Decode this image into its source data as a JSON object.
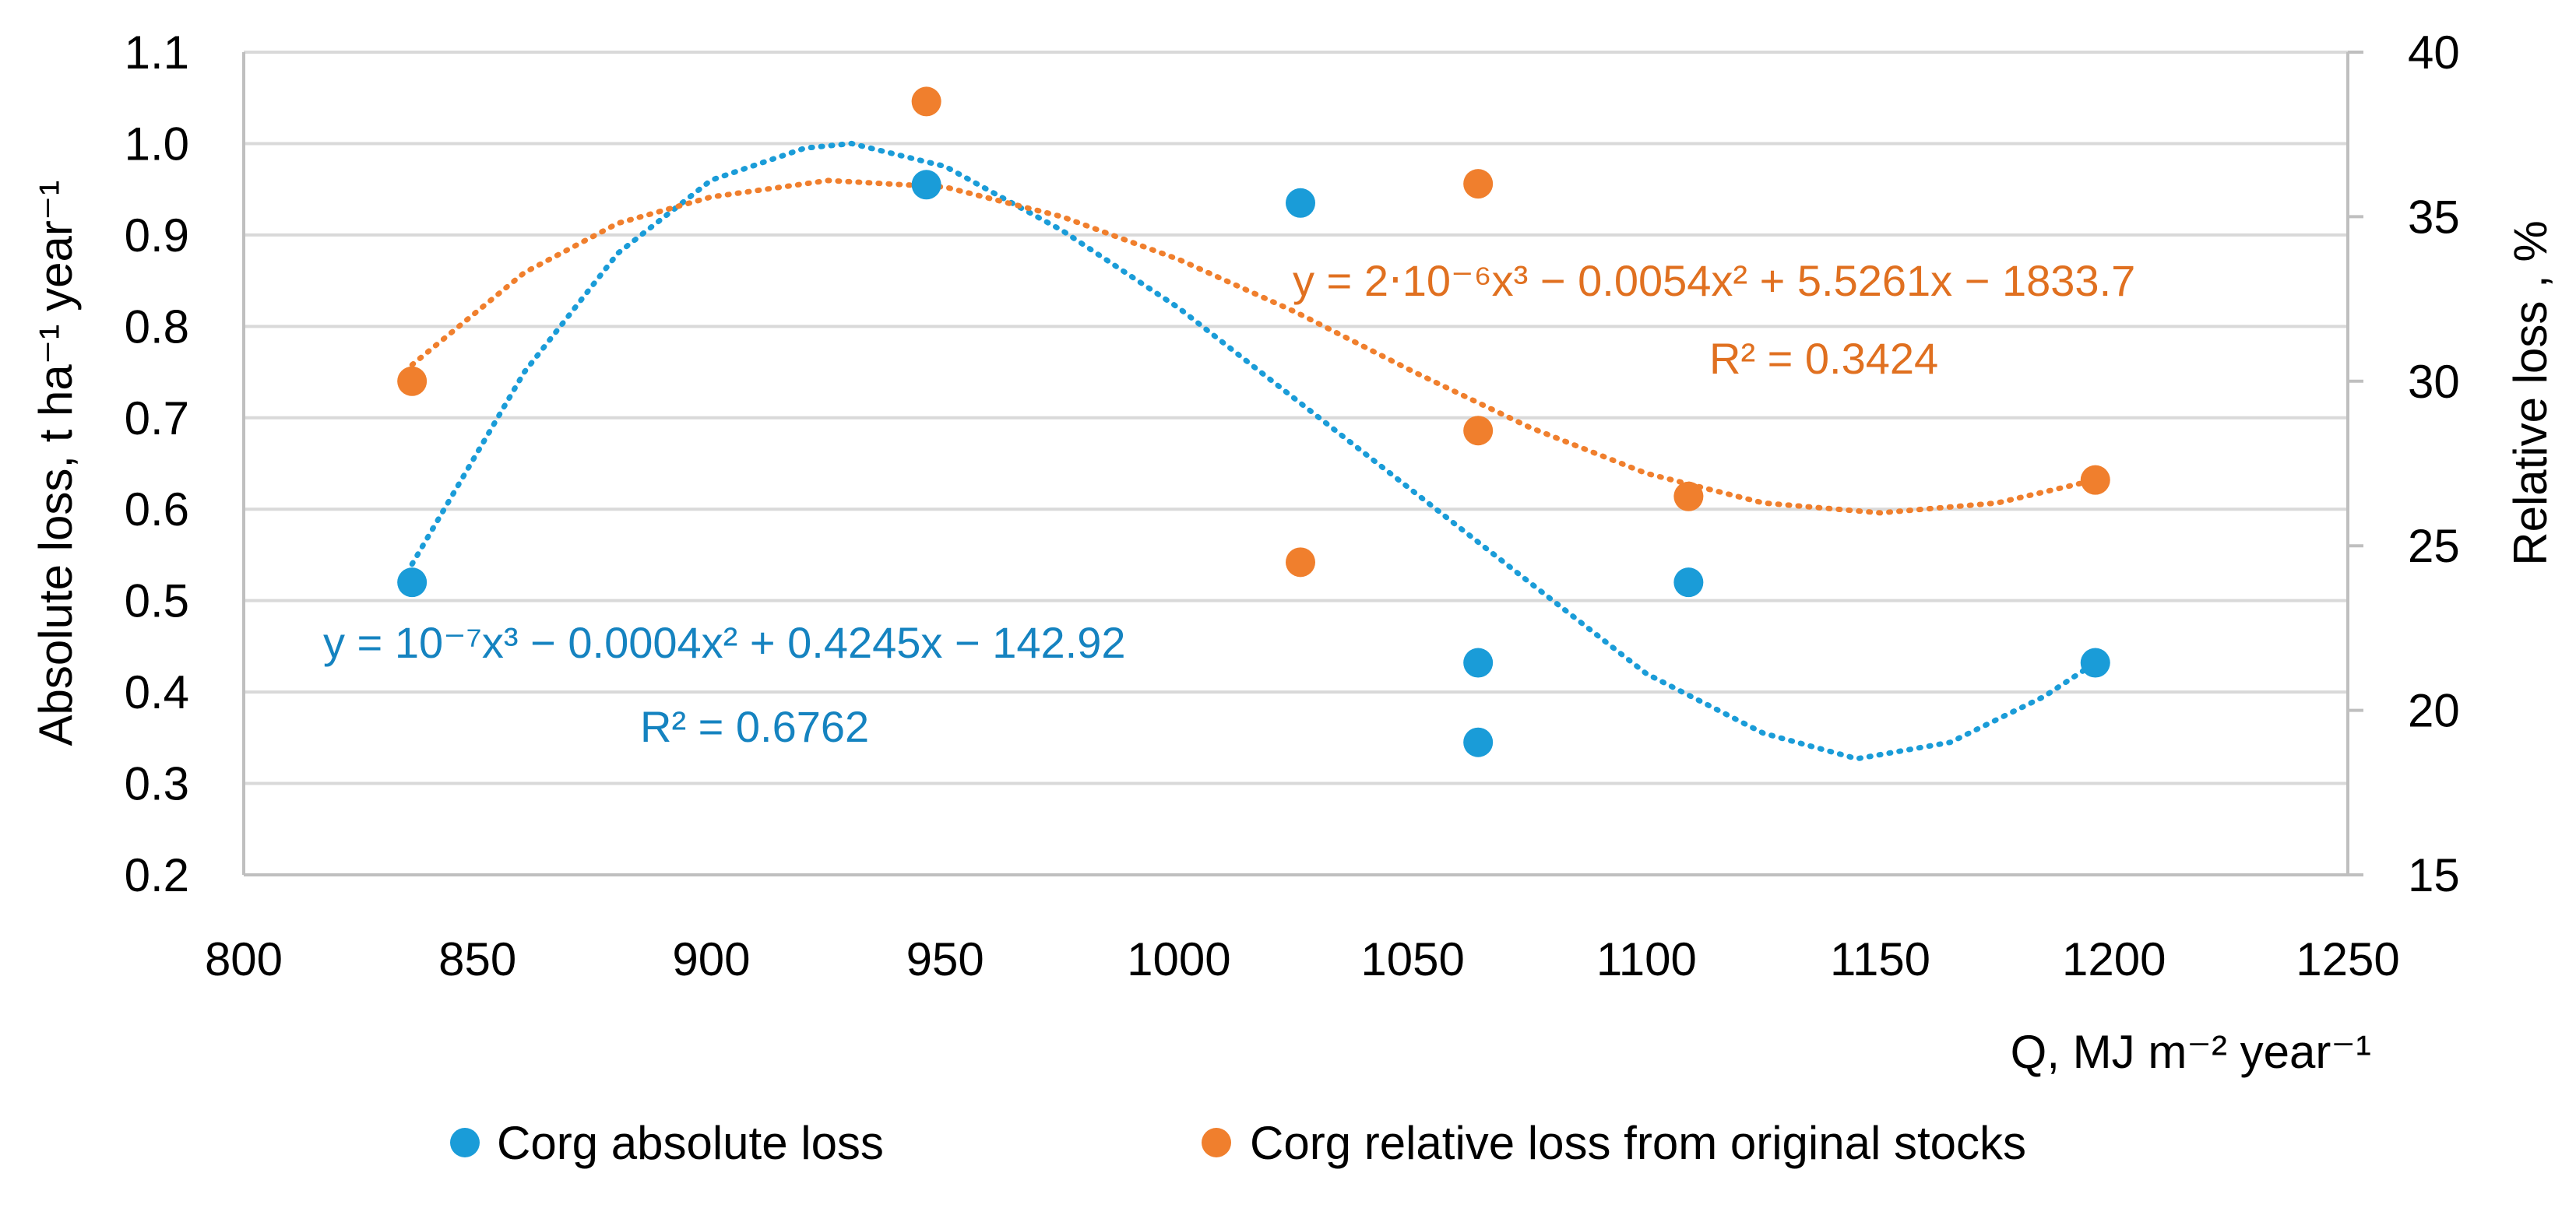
{
  "chart_data": {
    "type": "scatter",
    "title": "",
    "xlabel": "Q, MJ m⁻² year⁻¹",
    "ylabel": "Absolute loss, t ha⁻¹ year⁻¹",
    "y2label": "Relative loss , %",
    "xlim": [
      800,
      1250
    ],
    "ylim": [
      0.2,
      1.1
    ],
    "y2lim": [
      15,
      40
    ],
    "x_ticks": [
      800,
      850,
      900,
      950,
      1000,
      1050,
      1100,
      1150,
      1200,
      1250
    ],
    "y_ticks": [
      0.2,
      0.3,
      0.4,
      0.5,
      0.6,
      0.7,
      0.8,
      0.9,
      1.0,
      1.1
    ],
    "y_tick_labels": [
      "0.2",
      "0.3",
      "0.4",
      "0.5",
      "0.6",
      "0.7",
      "0.8",
      "0.9",
      "1.0",
      "1.1"
    ],
    "y2_ticks": [
      15,
      20,
      25,
      30,
      35,
      40
    ],
    "grid": true,
    "legend_position": "bottom",
    "colors": {
      "absolute": "#1a9cd8",
      "relative": "#f07f2d",
      "absolute_eq": "#1583c0",
      "relative_eq": "#e07020"
    },
    "series": [
      {
        "name": "Corg absolute loss",
        "axis": "left",
        "points": [
          {
            "x": 836,
            "y": 0.52
          },
          {
            "x": 946,
            "y": 0.955
          },
          {
            "x": 1026,
            "y": 0.935
          },
          {
            "x": 1064,
            "y": 0.432
          },
          {
            "x": 1064,
            "y": 0.345
          },
          {
            "x": 1109,
            "y": 0.52
          },
          {
            "x": 1196,
            "y": 0.432
          }
        ],
        "trendline": {
          "type": "poly3",
          "x_range": [
            836,
            1196
          ],
          "curve": [
            {
              "x": 836,
              "y": 0.54
            },
            {
              "x": 860,
              "y": 0.75
            },
            {
              "x": 880,
              "y": 0.88
            },
            {
              "x": 900,
              "y": 0.96
            },
            {
              "x": 920,
              "y": 0.995
            },
            {
              "x": 930,
              "y": 1.0
            },
            {
              "x": 950,
              "y": 0.975
            },
            {
              "x": 975,
              "y": 0.905
            },
            {
              "x": 1000,
              "y": 0.82
            },
            {
              "x": 1025,
              "y": 0.72
            },
            {
              "x": 1050,
              "y": 0.62
            },
            {
              "x": 1075,
              "y": 0.52
            },
            {
              "x": 1100,
              "y": 0.42
            },
            {
              "x": 1125,
              "y": 0.355
            },
            {
              "x": 1145,
              "y": 0.327
            },
            {
              "x": 1165,
              "y": 0.345
            },
            {
              "x": 1185,
              "y": 0.395
            },
            {
              "x": 1196,
              "y": 0.432
            }
          ]
        },
        "equation": "y = 10⁻⁷x³ − 0.0004x² + 0.4245x − 142.92",
        "r2": "R² = 0.6762"
      },
      {
        "name": "Corg relative loss from original stocks",
        "axis": "right",
        "points": [
          {
            "x": 836,
            "y": 30.0
          },
          {
            "x": 946,
            "y": 38.5
          },
          {
            "x": 1026,
            "y": 24.5
          },
          {
            "x": 1064,
            "y": 36.0
          },
          {
            "x": 1064,
            "y": 28.5
          },
          {
            "x": 1109,
            "y": 26.5
          },
          {
            "x": 1196,
            "y": 27.0
          }
        ],
        "trendline": {
          "type": "poly3",
          "x_range": [
            836,
            1196
          ],
          "curve": [
            {
              "x": 836,
              "y": 30.5
            },
            {
              "x": 860,
              "y": 33.3
            },
            {
              "x": 880,
              "y": 34.8
            },
            {
              "x": 900,
              "y": 35.6
            },
            {
              "x": 925,
              "y": 36.1
            },
            {
              "x": 950,
              "y": 35.9
            },
            {
              "x": 975,
              "y": 35.0
            },
            {
              "x": 1000,
              "y": 33.7
            },
            {
              "x": 1025,
              "y": 32.1
            },
            {
              "x": 1050,
              "y": 30.3
            },
            {
              "x": 1075,
              "y": 28.6
            },
            {
              "x": 1100,
              "y": 27.2
            },
            {
              "x": 1125,
              "y": 26.3
            },
            {
              "x": 1150,
              "y": 26.0
            },
            {
              "x": 1175,
              "y": 26.3
            },
            {
              "x": 1196,
              "y": 27.0
            }
          ]
        },
        "equation": "y = 2‧10⁻⁶x³ − 0.0054x² + 5.5261x − 1833.7",
        "r2": "R² = 0.3424"
      }
    ]
  }
}
